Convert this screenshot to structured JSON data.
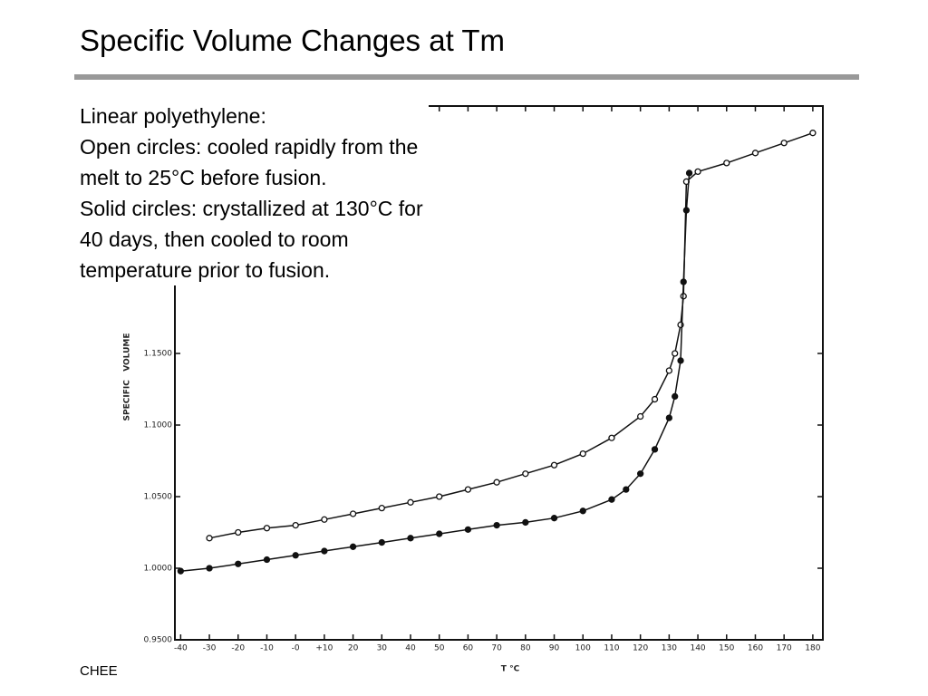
{
  "chart_data": {
    "type": "scatter",
    "title": "Specific Volume Changes at Tm",
    "annotation": [
      "Linear polyethylene:",
      "Open circles: cooled rapidly from the",
      "melt to 25°C before fusion.",
      "Solid circles: crystallized at 130°C for",
      "40 days, then cooled to room",
      "temperature prior to fusion."
    ],
    "footer": "CHEE",
    "x_label": "T °C",
    "y_label": "SPECIFIC   VOLUME",
    "xlim": [
      -42,
      183.5
    ],
    "ylim": [
      0.95,
      1.3228
    ],
    "xticks": [
      -40,
      -30,
      -20,
      -10,
      {
        "value": 0,
        "label": "-0"
      },
      {
        "value": 10,
        "label": "+10"
      },
      20,
      30,
      40,
      50,
      60,
      70,
      80,
      90,
      100,
      110,
      120,
      130,
      140,
      150,
      160,
      170,
      180
    ],
    "yticks": [
      {
        "value": 0.95,
        "label": "0.9500"
      },
      {
        "value": 1.0,
        "label": "1.0000"
      },
      {
        "value": 1.05,
        "label": "1.0500"
      },
      {
        "value": 1.1,
        "label": "1.1000"
      },
      {
        "value": 1.15,
        "label": "1.1500"
      }
    ],
    "series": [
      {
        "marker": "open",
        "color": "#111111",
        "x": [
          -30,
          -20,
          -10,
          0,
          10,
          20,
          30,
          40,
          50,
          60,
          70,
          80,
          90,
          100,
          110,
          120,
          125,
          130,
          132,
          134,
          135,
          136,
          140,
          150,
          160,
          170,
          180
        ],
        "values": [
          1.021,
          1.025,
          1.028,
          1.03,
          1.034,
          1.038,
          1.042,
          1.046,
          1.05,
          1.055,
          1.06,
          1.066,
          1.072,
          1.08,
          1.091,
          1.106,
          1.118,
          1.138,
          1.15,
          1.17,
          1.19,
          1.27,
          1.277,
          1.283,
          1.29,
          1.297,
          1.304
        ]
      },
      {
        "marker": "solid",
        "color": "#111111",
        "x": [
          -40,
          -30,
          -20,
          -10,
          0,
          10,
          20,
          30,
          40,
          50,
          60,
          70,
          80,
          90,
          100,
          110,
          115,
          120,
          125,
          130,
          132,
          134,
          135,
          136,
          137
        ],
        "values": [
          0.998,
          1.0,
          1.003,
          1.006,
          1.009,
          1.012,
          1.015,
          1.018,
          1.021,
          1.024,
          1.027,
          1.03,
          1.032,
          1.035,
          1.04,
          1.048,
          1.055,
          1.066,
          1.083,
          1.105,
          1.12,
          1.145,
          1.2,
          1.25,
          1.276
        ]
      }
    ]
  }
}
